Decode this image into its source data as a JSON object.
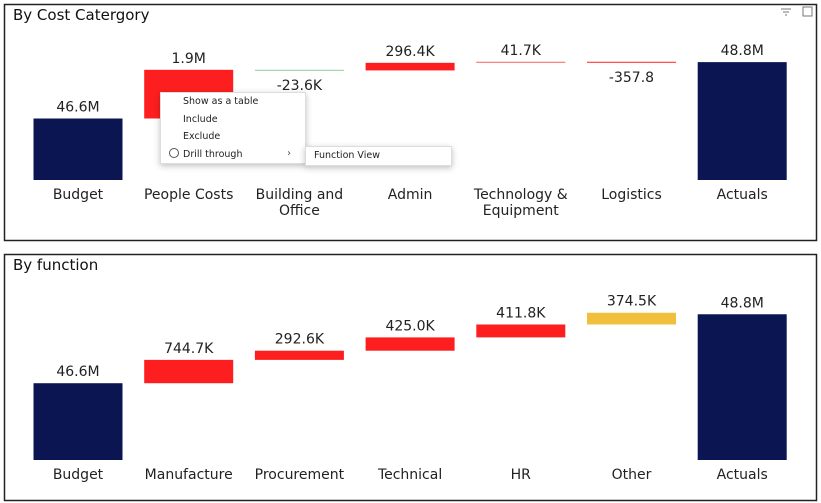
{
  "chart_data": [
    {
      "type": "waterfall",
      "title": "By Cost Catergory",
      "categories": [
        "Budget",
        "People Costs",
        "Building and Office",
        "Admin",
        "Technology & Equipment",
        "Logistics",
        "Actuals"
      ],
      "values": [
        46600000,
        1900000,
        -23600,
        296400,
        41700,
        -357.8,
        48800000
      ],
      "value_labels": [
        "46.6M",
        "1.9M",
        "-23.6K",
        "296.4K",
        "41.7K",
        "-357.8",
        "48.8M"
      ],
      "colors": [
        "#0b1551",
        "#fd1f1f",
        "#8ccf9a",
        "#fd1f1f",
        "#f46b6b",
        "#fd1f1f",
        "#0b1551"
      ],
      "ylim": [
        44200000,
        49000000
      ]
    },
    {
      "type": "waterfall",
      "title": "By function",
      "categories": [
        "Budget",
        "Manufacture",
        "Procurement",
        "Technical",
        "HR",
        "Other",
        "Actuals"
      ],
      "values": [
        46600000,
        744700,
        292600,
        425000,
        411800,
        374500,
        48800000
      ],
      "value_labels": [
        "46.6M",
        "744.7K",
        "292.6K",
        "425.0K",
        "411.8K",
        "374.5K",
        "48.8M"
      ],
      "colors": [
        "#0b1551",
        "#fd1f1f",
        "#fd1f1f",
        "#fd1f1f",
        "#fd1f1f",
        "#f0c03c",
        "#0b1551"
      ],
      "ylim": [
        44150000,
        49000000
      ]
    }
  ],
  "context_menu": {
    "items": [
      "Show as a table",
      "Include",
      "Exclude",
      "Drill through"
    ],
    "submenu": [
      "Function View"
    ]
  }
}
